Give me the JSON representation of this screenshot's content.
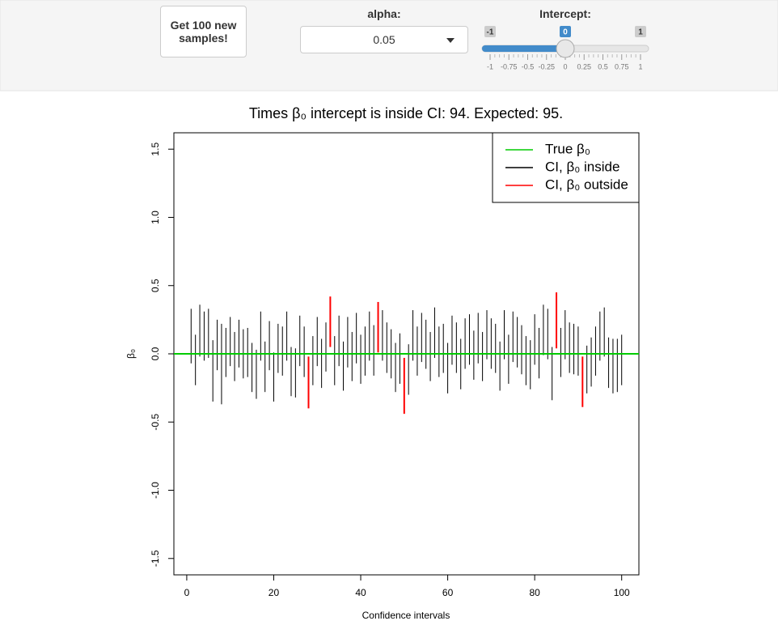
{
  "controls": {
    "button": "Get 100 new samples!",
    "alpha": {
      "label": "alpha:",
      "value": "0.05"
    },
    "intercept": {
      "label": "Intercept:",
      "min": -1,
      "max": 1,
      "value": 0,
      "ticks": [
        -1,
        -0.75,
        -0.5,
        -0.25,
        0,
        0.25,
        0.5,
        0.75,
        1
      ]
    }
  },
  "chart_data": {
    "type": "interval",
    "title": "Times β₀ intercept is inside CI: 94. Expected: 95.",
    "x_label": "Confidence intervals",
    "y_label": "β₀",
    "x": [
      1,
      2,
      3,
      4,
      5,
      6,
      7,
      8,
      9,
      10,
      11,
      12,
      13,
      14,
      15,
      16,
      17,
      18,
      19,
      20,
      21,
      22,
      23,
      24,
      25,
      26,
      27,
      28,
      29,
      30,
      31,
      32,
      33,
      34,
      35,
      36,
      37,
      38,
      39,
      40,
      41,
      42,
      43,
      44,
      45,
      46,
      47,
      48,
      49,
      50,
      51,
      52,
      53,
      54,
      55,
      56,
      57,
      58,
      59,
      60,
      61,
      62,
      63,
      64,
      65,
      66,
      67,
      68,
      69,
      70,
      71,
      72,
      73,
      74,
      75,
      76,
      77,
      78,
      79,
      80,
      81,
      82,
      83,
      84,
      85,
      86,
      87,
      88,
      89,
      90,
      91,
      92,
      93,
      94,
      95,
      96,
      97,
      98,
      99,
      100
    ],
    "lower": [
      -0.07,
      -0.23,
      -0.02,
      -0.05,
      -0.03,
      -0.35,
      -0.12,
      -0.37,
      -0.17,
      -0.09,
      -0.2,
      -0.1,
      -0.18,
      -0.17,
      -0.28,
      -0.33,
      -0.05,
      -0.28,
      -0.12,
      -0.35,
      -0.14,
      -0.16,
      -0.05,
      -0.31,
      -0.32,
      -0.09,
      -0.17,
      -0.4,
      -0.23,
      -0.09,
      -0.25,
      -0.13,
      0.05,
      -0.23,
      -0.09,
      -0.27,
      -0.1,
      -0.2,
      -0.07,
      -0.22,
      -0.16,
      -0.05,
      -0.16,
      0.01,
      -0.05,
      -0.14,
      -0.18,
      -0.28,
      -0.22,
      -0.44,
      -0.3,
      -0.05,
      -0.16,
      -0.06,
      -0.11,
      -0.2,
      -0.03,
      -0.17,
      -0.14,
      -0.29,
      -0.08,
      -0.14,
      -0.26,
      -0.11,
      -0.08,
      -0.19,
      -0.07,
      -0.2,
      -0.04,
      -0.11,
      -0.14,
      -0.27,
      -0.04,
      -0.22,
      -0.06,
      -0.1,
      -0.15,
      -0.23,
      -0.26,
      -0.08,
      -0.18,
      -0.01,
      -0.04,
      -0.34,
      0.04,
      -0.17,
      -0.04,
      -0.14,
      -0.15,
      -0.16,
      -0.39,
      -0.29,
      -0.24,
      -0.16,
      -0.05,
      -0.02,
      -0.25,
      -0.29,
      -0.28,
      -0.23
    ],
    "upper": [
      0.33,
      0.14,
      0.36,
      0.31,
      0.33,
      0.1,
      0.25,
      0.22,
      0.19,
      0.27,
      0.16,
      0.25,
      0.18,
      0.19,
      0.08,
      0.03,
      0.31,
      0.09,
      0.24,
      0.01,
      0.22,
      0.2,
      0.31,
      0.05,
      0.04,
      0.28,
      0.2,
      -0.02,
      0.13,
      0.27,
      0.11,
      0.23,
      0.42,
      0.13,
      0.28,
      0.09,
      0.27,
      0.16,
      0.3,
      0.14,
      0.2,
      0.31,
      0.21,
      0.38,
      0.32,
      0.23,
      0.18,
      0.08,
      0.15,
      -0.03,
      0.07,
      0.32,
      0.2,
      0.3,
      0.25,
      0.16,
      0.34,
      0.2,
      0.22,
      0.08,
      0.28,
      0.23,
      0.11,
      0.26,
      0.29,
      0.17,
      0.3,
      0.16,
      0.32,
      0.26,
      0.22,
      0.09,
      0.32,
      0.14,
      0.31,
      0.27,
      0.21,
      0.13,
      0.1,
      0.29,
      0.19,
      0.36,
      0.33,
      0.05,
      0.45,
      0.19,
      0.32,
      0.23,
      0.22,
      0.2,
      -0.02,
      0.06,
      0.12,
      0.2,
      0.31,
      0.34,
      0.12,
      0.11,
      0.11,
      0.14
    ],
    "xlim": [
      -2.96,
      103.96
    ],
    "ylim": [
      -1.62,
      1.62
    ],
    "xticks": [
      0,
      20,
      40,
      60,
      80,
      100
    ],
    "yticks": [
      -1.5,
      {
        "value": -1,
        "label": "-1.0"
      },
      -0.5,
      {
        "value": 0,
        "label": "0.0"
      },
      0.5,
      {
        "value": 1,
        "label": "1.0"
      },
      1.5
    ],
    "legend": {
      "position": "topright",
      "entries": [
        {
          "name": "True β₀",
          "color": "#00cc00"
        },
        {
          "name": "CI, β₀ inside",
          "color": "#000000"
        },
        {
          "name": "CI, β₀ outside",
          "color": "#ff0000"
        }
      ]
    }
  }
}
